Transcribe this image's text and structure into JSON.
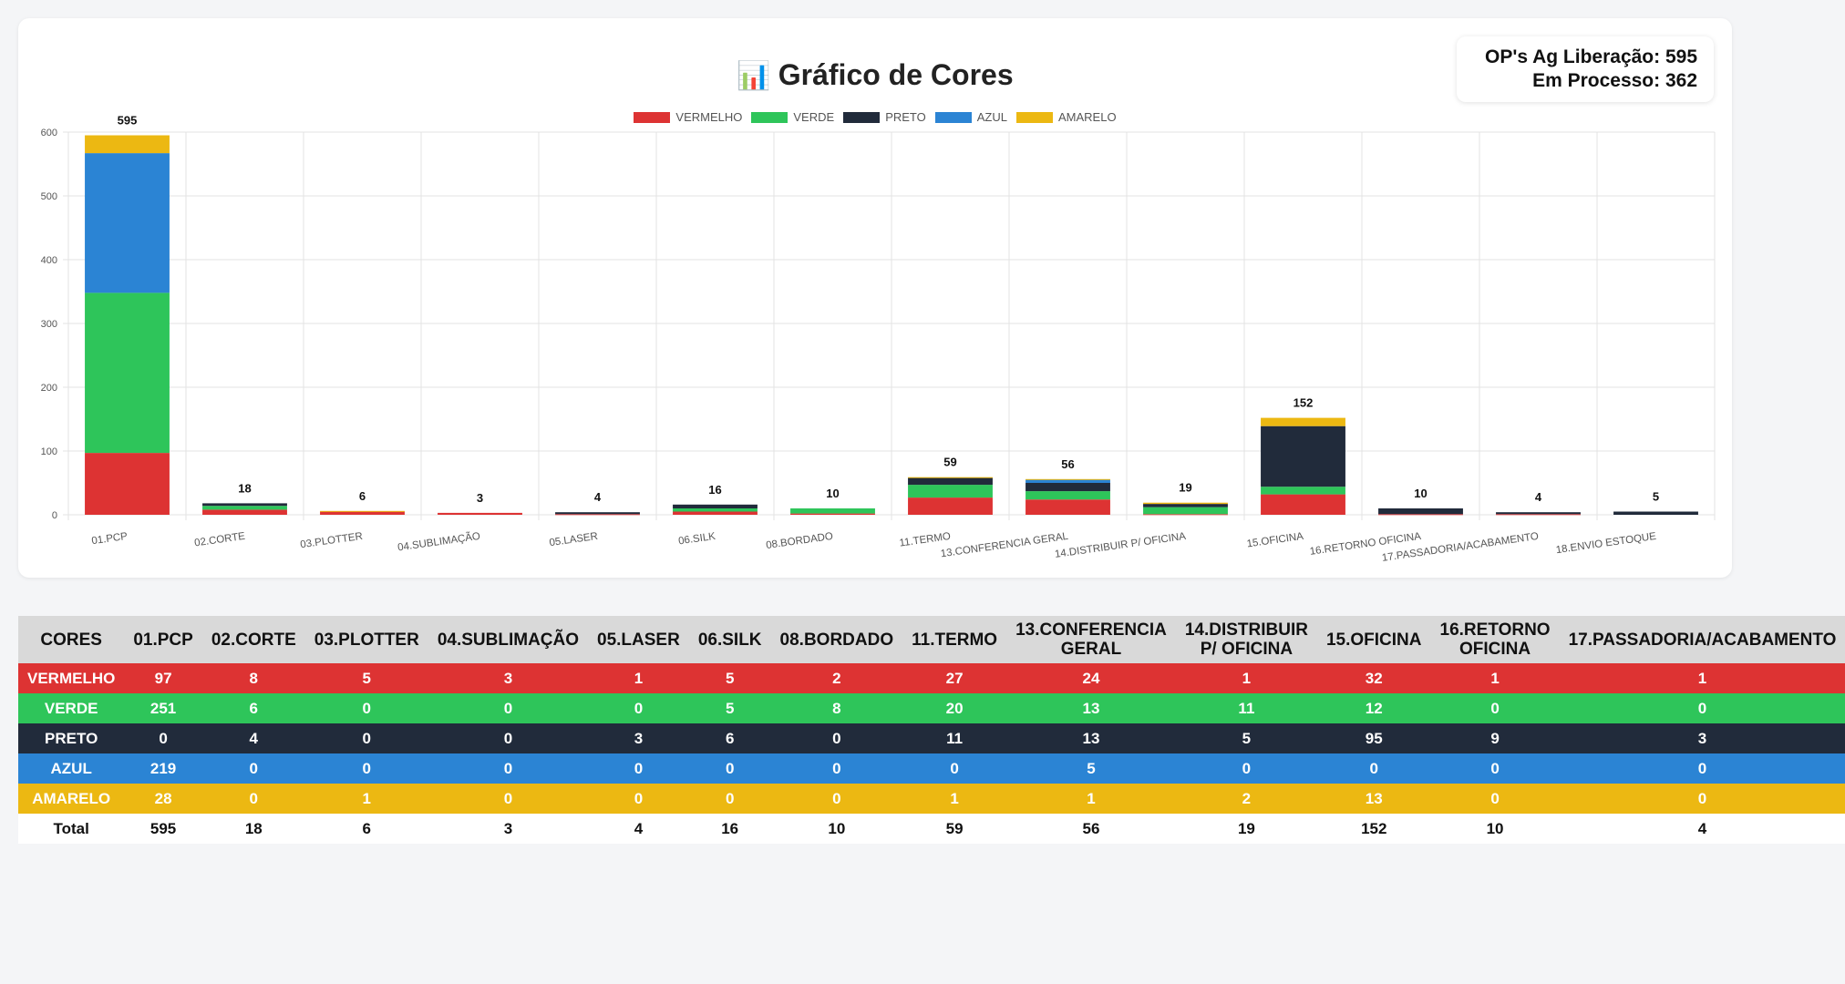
{
  "title": "Gráfico de Cores",
  "title_icon": "📊",
  "stats": {
    "liberacao": "OP's Ag Liberação: 595",
    "processo": "Em Processo: 362"
  },
  "chart_data": {
    "type": "bar",
    "stacked": true,
    "categories": [
      "01.PCP",
      "02.CORTE",
      "03.PLOTTER",
      "04.SUBLIMAÇÃO",
      "05.LASER",
      "06.SILK",
      "08.BORDADO",
      "11.TERMO",
      "13.CONFERENCIA GERAL",
      "14.DISTRIBUIR P/ OFICINA",
      "15.OFICINA",
      "16.RETORNO OFICINA",
      "17.PASSADORIA/ACABAMENTO",
      "18.ENVIO ESTOQUE"
    ],
    "series": [
      {
        "name": "VERMELHO",
        "color": "#dd3333",
        "values": [
          97,
          8,
          5,
          3,
          1,
          5,
          2,
          27,
          24,
          1,
          32,
          1,
          1,
          0
        ]
      },
      {
        "name": "VERDE",
        "color": "#2ec55a",
        "values": [
          251,
          6,
          0,
          0,
          0,
          5,
          8,
          20,
          13,
          11,
          12,
          0,
          0,
          0
        ]
      },
      {
        "name": "PRETO",
        "color": "#212b3b",
        "values": [
          0,
          4,
          0,
          0,
          3,
          6,
          0,
          11,
          13,
          5,
          95,
          9,
          3,
          5
        ]
      },
      {
        "name": "AZUL",
        "color": "#2b84d4",
        "values": [
          219,
          0,
          0,
          0,
          0,
          0,
          0,
          0,
          5,
          0,
          0,
          0,
          0,
          0
        ]
      },
      {
        "name": "AMARELO",
        "color": "#ecb812",
        "values": [
          28,
          0,
          1,
          0,
          0,
          0,
          0,
          1,
          1,
          2,
          13,
          0,
          0,
          0
        ]
      }
    ],
    "totals": [
      595,
      18,
      6,
      3,
      4,
      16,
      10,
      59,
      56,
      19,
      152,
      10,
      4,
      5
    ],
    "ylim": [
      0,
      600
    ],
    "yticks": [
      0,
      100,
      200,
      300,
      400,
      500,
      600
    ],
    "grid": true,
    "legend": "top-center"
  },
  "table": {
    "header_label": "CORES",
    "columns": [
      "01.PCP",
      "02.CORTE",
      "03.PLOTTER",
      "04.SUBLIMAÇÃO",
      "05.LASER",
      "06.SILK",
      "08.BORDADO",
      "11.TERMO",
      "13.CONFERENCIA GERAL",
      "14.DISTRIBUIR P/ OFICINA",
      "15.OFICINA",
      "16.RETORNO OFICINA",
      "17.PASSADORIA/ACABAMENTO"
    ],
    "column_lines": [
      [
        "CORES"
      ],
      [
        "01.PCP"
      ],
      [
        "02.CORTE"
      ],
      [
        "03.PLOTTER"
      ],
      [
        "04.SUBLIMAÇÃO"
      ],
      [
        "05.LASER"
      ],
      [
        "06.SILK"
      ],
      [
        "08.BORDADO"
      ],
      [
        "11.TERMO"
      ],
      [
        "13.CONFERENCIA",
        "GERAL"
      ],
      [
        "14.DISTRIBUIR",
        "P/ OFICINA"
      ],
      [
        "15.OFICINA"
      ],
      [
        "16.RETORNO",
        "OFICINA"
      ],
      [
        "17.PASSADORIA/ACABAMENTO"
      ]
    ],
    "rows": [
      {
        "label": "VERMELHO",
        "key": "VERMELHO",
        "values": [
          97,
          8,
          5,
          3,
          1,
          5,
          2,
          27,
          24,
          1,
          32,
          1,
          1
        ]
      },
      {
        "label": "VERDE",
        "key": "VERDE",
        "values": [
          251,
          6,
          0,
          0,
          0,
          5,
          8,
          20,
          13,
          11,
          12,
          0,
          0
        ]
      },
      {
        "label": "PRETO",
        "key": "PRETO",
        "values": [
          0,
          4,
          0,
          0,
          3,
          6,
          0,
          11,
          13,
          5,
          95,
          9,
          3
        ]
      },
      {
        "label": "AZUL",
        "key": "AZUL",
        "values": [
          219,
          0,
          0,
          0,
          0,
          0,
          0,
          0,
          5,
          0,
          0,
          0,
          0
        ]
      },
      {
        "label": "AMARELO",
        "key": "AMARELO",
        "values": [
          28,
          0,
          1,
          0,
          0,
          0,
          0,
          1,
          1,
          2,
          13,
          0,
          0
        ]
      },
      {
        "label": "Total",
        "key": "total",
        "values": [
          595,
          18,
          6,
          3,
          4,
          16,
          10,
          59,
          56,
          19,
          152,
          10,
          4
        ]
      }
    ]
  }
}
